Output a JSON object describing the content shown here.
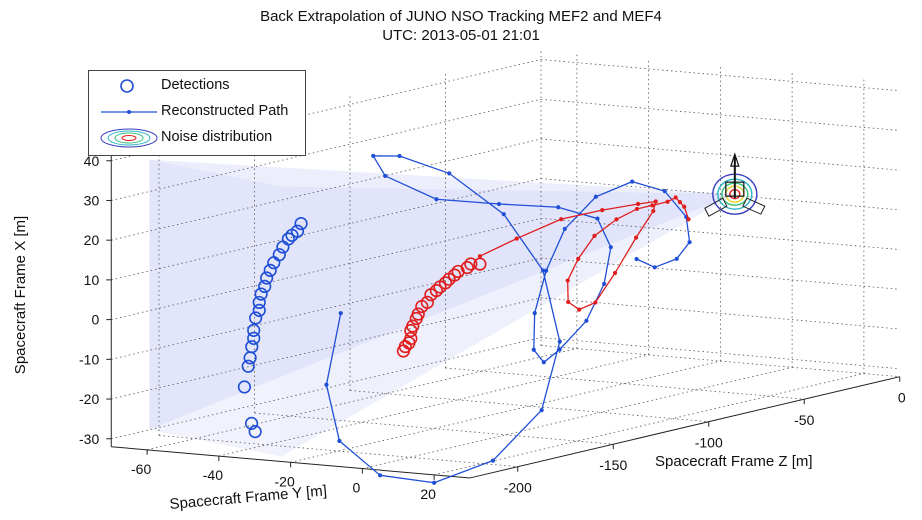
{
  "chart_data": {
    "type": "scatter-3d",
    "title": "Back Extrapolation of JUNO NSO Tracking MEF2 and MEF4",
    "subtitle": "UTC: 2013-05-01 21:01",
    "xlabel": "Spacecraft Frame Y [m]",
    "ylabel": "Spacecraft Frame Z [m]",
    "zlabel": "Spacecraft Frame X [m]",
    "x_ticks": [
      "-60",
      "-40",
      "-20",
      "0",
      "20"
    ],
    "y_ticks": [
      "-200",
      "-150",
      "-100",
      "-50",
      "0"
    ],
    "z_ticks": [
      "-30",
      "-20",
      "-10",
      "0",
      "10",
      "20",
      "30",
      "40"
    ],
    "xlim": [
      -70,
      30
    ],
    "ylim": [
      -225,
      0
    ],
    "zlim": [
      -32,
      42
    ],
    "grid": true,
    "legend_position": "top-left",
    "legend": [
      {
        "label": "Detections",
        "marker": "circle"
      },
      {
        "label": "Reconstructed Path",
        "marker": "line-dot"
      },
      {
        "label": "Noise distribution",
        "marker": "contour"
      }
    ],
    "colors": {
      "blue": "#1f4fd6",
      "red": "#e11e1e",
      "cone": "#c8cdf5"
    },
    "series": [
      {
        "color": "blue",
        "marker": "circle",
        "points": [
          [
            -40,
            -206,
            -28
          ],
          [
            -41,
            -206,
            -26
          ],
          [
            -43,
            -206,
            -17
          ],
          [
            -43,
            -204,
            -12
          ],
          [
            -43,
            -203,
            -10
          ],
          [
            -42,
            -204,
            -7
          ],
          [
            -42,
            -203,
            -5
          ],
          [
            -42,
            -203,
            -3
          ],
          [
            -42,
            -202,
            0
          ],
          [
            -41,
            -202,
            2
          ],
          [
            -41,
            -202,
            4
          ],
          [
            -41,
            -201,
            6
          ],
          [
            -40,
            -201,
            8
          ],
          [
            -40,
            -200,
            10
          ],
          [
            -39,
            -200,
            12
          ],
          [
            -38,
            -200,
            14
          ],
          [
            -37,
            -199,
            16
          ],
          [
            -36,
            -199,
            18
          ],
          [
            -35,
            -198,
            20
          ],
          [
            -34,
            -198,
            21
          ],
          [
            -33,
            -197,
            22
          ],
          [
            -32,
            -197,
            24
          ]
        ]
      },
      {
        "color": "red",
        "marker": "circle",
        "points": [
          [
            -4,
            -196,
            -6
          ],
          [
            -4,
            -195,
            -5
          ],
          [
            -3,
            -195,
            -4
          ],
          [
            -3,
            -194,
            -3
          ],
          [
            -3,
            -194,
            -1
          ],
          [
            -3,
            -193,
            0
          ],
          [
            -2,
            -193,
            2
          ],
          [
            -2,
            -192,
            3
          ],
          [
            -1,
            -192,
            5
          ],
          [
            0,
            -191,
            6
          ],
          [
            1,
            -191,
            8
          ],
          [
            2,
            -190,
            9
          ],
          [
            3,
            -190,
            10
          ],
          [
            4,
            -189,
            11
          ],
          [
            5,
            -189,
            12
          ],
          [
            6,
            -188,
            13
          ],
          [
            7,
            -188,
            14
          ],
          [
            9,
            -187,
            15
          ],
          [
            10,
            -187,
            16
          ],
          [
            12,
            -186,
            16
          ]
        ]
      },
      {
        "color": "blue",
        "marker": "line-dot",
        "points": [
          [
            -22,
            -195,
            2
          ],
          [
            -18,
            -210,
            -14
          ],
          [
            -8,
            -222,
            -26
          ],
          [
            6,
            -227,
            -33
          ],
          [
            20,
            -225,
            -34
          ],
          [
            30,
            -213,
            -29
          ],
          [
            34,
            -195,
            -18
          ],
          [
            30,
            -178,
            -3
          ],
          [
            20,
            -168,
            13
          ],
          [
            8,
            -166,
            26
          ],
          [
            -4,
            -172,
            36
          ],
          [
            -12,
            -183,
            41
          ],
          [
            -14,
            -193,
            42
          ],
          [
            -8,
            -198,
            38
          ],
          [
            2,
            -190,
            32
          ],
          [
            12,
            -176,
            30
          ],
          [
            20,
            -160,
            28
          ],
          [
            24,
            -147,
            24
          ],
          [
            24,
            -140,
            16
          ],
          [
            20,
            -136,
            6
          ],
          [
            14,
            -134,
            -4
          ],
          [
            6,
            -133,
            -12
          ],
          [
            0,
            -130,
            -16
          ],
          [
            -6,
            -124,
            -14
          ],
          [
            -10,
            -116,
            -6
          ],
          [
            -10,
            -110,
            4
          ],
          [
            -8,
            -104,
            14
          ],
          [
            -2,
            -99,
            22
          ],
          [
            6,
            -95,
            26
          ],
          [
            14,
            -93,
            24
          ],
          [
            20,
            -93,
            18
          ],
          [
            22,
            -95,
            12
          ],
          [
            20,
            -98,
            8
          ],
          [
            16,
            -102,
            6
          ],
          [
            12,
            -104,
            8
          ]
        ]
      },
      {
        "color": "red",
        "marker": "line-dot",
        "points": [
          [
            12,
            -186,
            18
          ],
          [
            18,
            -178,
            22
          ],
          [
            24,
            -166,
            26
          ],
          [
            28,
            -152,
            27
          ],
          [
            30,
            -137,
            27
          ],
          [
            28,
            -124,
            26
          ],
          [
            22,
            -114,
            22
          ],
          [
            14,
            -108,
            14
          ],
          [
            6,
            -104,
            4
          ],
          [
            0,
            -103,
            -4
          ],
          [
            -4,
            -104,
            -6
          ],
          [
            -6,
            -106,
            -4
          ],
          [
            -4,
            -110,
            2
          ],
          [
            0,
            -112,
            8
          ],
          [
            4,
            -111,
            14
          ],
          [
            8,
            -107,
            18
          ],
          [
            10,
            -100,
            20
          ],
          [
            10,
            -92,
            20
          ],
          [
            10,
            -84,
            20
          ],
          [
            8,
            -76,
            20
          ],
          [
            6,
            -70,
            18
          ],
          [
            4,
            -64,
            16
          ],
          [
            2,
            -58,
            12
          ]
        ]
      }
    ],
    "noise_distribution_center": [
      0,
      -30,
      15
    ]
  }
}
